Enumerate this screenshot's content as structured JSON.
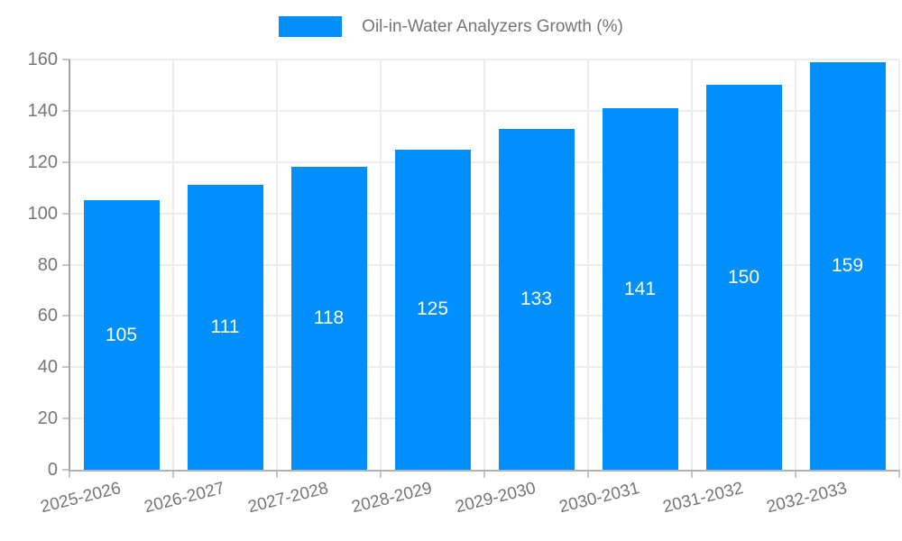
{
  "chart_data": {
    "type": "bar",
    "title": "Oil-in-Water Analyzers Growth (%)",
    "categories": [
      "2025-2026",
      "2026-2027",
      "2027-2028",
      "2028-2029",
      "2029-2030",
      "2030-2031",
      "2031-2032",
      "2032-2033"
    ],
    "values": [
      105,
      111,
      118,
      125,
      133,
      141,
      150,
      159
    ],
    "xlabel": "",
    "ylabel": "",
    "ylim": [
      0,
      160
    ],
    "yticks": [
      0,
      20,
      40,
      60,
      80,
      100,
      120,
      140,
      160
    ],
    "grid": true,
    "legend_position": "top-center",
    "bar_color": "#008FFB",
    "bar_label_color": "#ffffff",
    "axis_text_color": "#757575",
    "gridline_color": "#ececec"
  }
}
